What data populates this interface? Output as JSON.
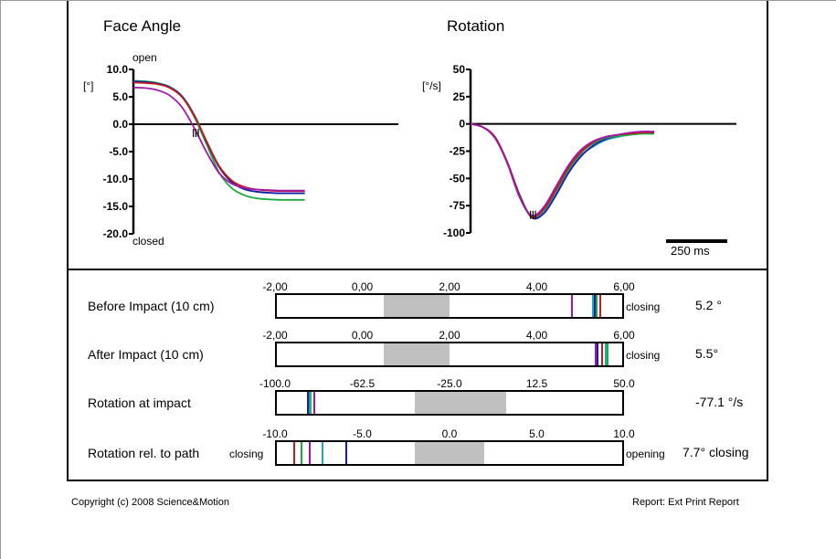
{
  "colors": {
    "teal": "#20a8b0",
    "blue": "#1c1ca8",
    "red": "#c41c1c",
    "green": "#1aac3c",
    "purple": "#a414a8",
    "band": "#c0c0c0"
  },
  "chart_data": [
    {
      "type": "line",
      "title": "Face Angle",
      "ylabel": "[°]",
      "top_label": "open",
      "bottom_label": "closed",
      "ylim": [
        -20,
        10
      ],
      "yticks": [
        "10.0",
        "5.0",
        "0.0",
        "-5.0",
        "-10.0",
        "-15.0",
        "-20.0"
      ],
      "ytick_values": [
        10,
        5,
        0,
        -5,
        -10,
        -15,
        -20
      ],
      "x_ms": [
        0,
        50,
        100,
        150,
        200,
        250,
        300,
        350,
        400,
        450,
        500,
        550,
        600,
        650,
        700
      ],
      "series": [
        {
          "name": "teal",
          "color": "teal",
          "values": [
            7.9,
            7.8,
            7.5,
            6.8,
            5.1,
            1.6,
            -3.3,
            -7.8,
            -10.5,
            -11.8,
            -12.3,
            -12.5,
            -12.6,
            -12.6,
            -12.6
          ]
        },
        {
          "name": "green",
          "color": "green",
          "values": [
            7.9,
            7.8,
            7.5,
            6.7,
            4.9,
            1.2,
            -3.8,
            -8.8,
            -11.6,
            -12.9,
            -13.5,
            -13.7,
            -13.8,
            -13.8,
            -13.8
          ]
        },
        {
          "name": "blue",
          "color": "blue",
          "values": [
            7.8,
            7.7,
            7.4,
            6.7,
            5.0,
            1.5,
            -3.3,
            -7.8,
            -10.5,
            -11.8,
            -12.3,
            -12.5,
            -12.6,
            -12.6,
            -12.6
          ]
        },
        {
          "name": "red",
          "color": "red",
          "values": [
            7.6,
            7.5,
            7.3,
            6.6,
            4.9,
            1.5,
            -3.2,
            -7.6,
            -10.2,
            -11.4,
            -11.9,
            -12.1,
            -12.2,
            -12.2,
            -12.2
          ]
        },
        {
          "name": "purple",
          "color": "purple",
          "values": [
            6.7,
            6.6,
            6.2,
            5.2,
            3.0,
            -0.8,
            -5.2,
            -8.9,
            -10.8,
            -11.6,
            -11.9,
            -12.0,
            -12.1,
            -12.1,
            -12.1
          ]
        }
      ],
      "impact_ms": [
        245,
        255,
        265
      ]
    },
    {
      "type": "line",
      "title": "Rotation",
      "ylabel": "[°/s]",
      "ylim": [
        -100,
        50
      ],
      "yticks": [
        "50",
        "25",
        "0",
        "-25",
        "-50",
        "-75",
        "-100"
      ],
      "ytick_values": [
        50,
        25,
        0,
        -25,
        -50,
        -75,
        -100
      ],
      "scale_bar": "250 ms",
      "scale_bar_ms": 250,
      "x_ms": [
        0,
        50,
        100,
        150,
        200,
        250,
        300,
        350,
        400,
        450,
        500,
        550,
        600,
        650,
        700,
        750
      ],
      "series": [
        {
          "name": "teal",
          "color": "teal",
          "values": [
            0,
            -3,
            -12,
            -35,
            -65,
            -85,
            -80,
            -62,
            -43,
            -29,
            -21,
            -15,
            -12,
            -10,
            -9,
            -9
          ]
        },
        {
          "name": "blue",
          "color": "blue",
          "values": [
            0,
            -3,
            -12,
            -35,
            -65,
            -86,
            -82,
            -65,
            -45,
            -30,
            -20,
            -14,
            -11,
            -9,
            -8,
            -8
          ]
        },
        {
          "name": "green",
          "color": "green",
          "values": [
            0,
            -3,
            -13,
            -36,
            -67,
            -85,
            -79,
            -61,
            -42,
            -27,
            -18,
            -13,
            -11,
            -10,
            -9,
            -9
          ]
        },
        {
          "name": "red",
          "color": "red",
          "values": [
            0,
            -3,
            -12,
            -35,
            -66,
            -85,
            -78,
            -60,
            -40,
            -26,
            -17,
            -12,
            -10,
            -9,
            -8,
            -8
          ]
        },
        {
          "name": "purple",
          "color": "purple",
          "values": [
            0,
            -3,
            -13,
            -36,
            -67,
            -84,
            -76,
            -57,
            -38,
            -24,
            -16,
            -12,
            -10,
            -8,
            -7,
            -7
          ]
        }
      ],
      "impact_ms": [
        245,
        255,
        265
      ]
    }
  ],
  "bars": [
    {
      "label": "Before Impact (10 cm)",
      "min": -2,
      "max": 6,
      "ticks": [
        "-2,00",
        "0,00",
        "2,00",
        "4,00",
        "6,00"
      ],
      "band": [
        0.5,
        2.0
      ],
      "left_note": "",
      "right_note": "closing",
      "value": "5.2 °",
      "markers": [
        {
          "color": "purple",
          "v": 4.8
        },
        {
          "color": "teal",
          "v": 5.28
        },
        {
          "color": "blue",
          "v": 5.33
        },
        {
          "color": "green",
          "v": 5.38
        },
        {
          "color": "red",
          "v": 5.45
        }
      ]
    },
    {
      "label": "After Impact (10 cm)",
      "min": -2,
      "max": 6,
      "ticks": [
        "-2,00",
        "0,00",
        "2,00",
        "4,00",
        "6,00"
      ],
      "band": [
        0.5,
        2.0
      ],
      "left_note": "",
      "right_note": "closing",
      "value": "5.5°",
      "markers": [
        {
          "color": "purple",
          "v": 5.35
        },
        {
          "color": "blue",
          "v": 5.4
        },
        {
          "color": "red",
          "v": 5.5
        },
        {
          "color": "teal",
          "v": 5.58
        },
        {
          "color": "green",
          "v": 5.63
        }
      ]
    },
    {
      "label": "Rotation at impact",
      "min": -100,
      "max": 50,
      "ticks": [
        "-100.0",
        "-62.5",
        "-25.0",
        "12.5",
        "50.0"
      ],
      "band": [
        -40,
        -0.5
      ],
      "left_note": "",
      "right_note": "",
      "value": "-77.1 °/s",
      "markers": [
        {
          "color": "blue",
          "v": -85.8
        },
        {
          "color": "green",
          "v": -85.2
        },
        {
          "color": "teal",
          "v": -84.6
        },
        {
          "color": "purple",
          "v": -83.3
        }
      ]
    },
    {
      "label": "Rotation rel. to path",
      "min": -10,
      "max": 10,
      "ticks": [
        "-10.0",
        "-5.0",
        "0.0",
        "5.0",
        "10.0"
      ],
      "band": [
        -2,
        2
      ],
      "left_note": "closing",
      "right_note": "opening",
      "value": "7.7° closing",
      "markers": [
        {
          "color": "red",
          "v": -8.9
        },
        {
          "color": "green",
          "v": -8.5
        },
        {
          "color": "purple",
          "v": -8.0
        },
        {
          "color": "teal",
          "v": -7.3
        },
        {
          "color": "blue",
          "v": -5.9
        }
      ]
    }
  ],
  "footer": {
    "copyright": "Copyright (c) 2008 Science&Motion",
    "report": "Report: Ext Print Report"
  }
}
